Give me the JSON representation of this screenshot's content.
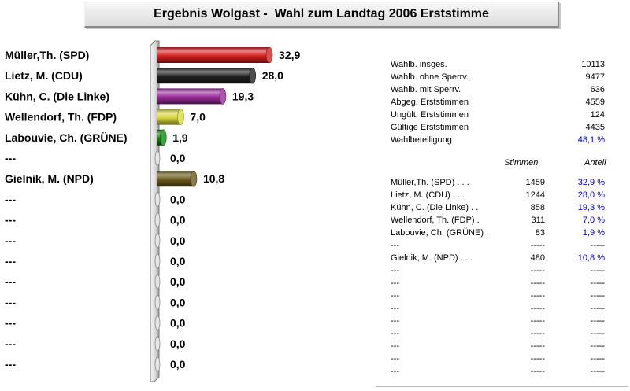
{
  "title": "Ergebnis Wolgast -  Wahl zum Landtag 2006 Erststimme",
  "chart_data": {
    "type": "bar",
    "orientation": "horizontal",
    "title": "Ergebnis Wolgast -  Wahl zum Landtag 2006 Erststimme",
    "categories": [
      "Müller,Th. (SPD)",
      "Lietz, M. (CDU)",
      "Kühn, C. (Die Linke)",
      "Wellendorf, Th. (FDP)",
      "Labouvie, Ch. (GRÜNE)",
      "---",
      "Gielnik, M. (NPD)",
      "---",
      "---",
      "---",
      "---",
      "---",
      "---",
      "---",
      "---",
      "---"
    ],
    "values": [
      32.9,
      28.0,
      19.3,
      7.0,
      1.9,
      0.0,
      10.8,
      0.0,
      0.0,
      0.0,
      0.0,
      0.0,
      0.0,
      0.0,
      0.0,
      0.0
    ],
    "value_labels": [
      "32,9",
      "28,0",
      "19,3",
      "7,0",
      "1,9",
      "0,0",
      "10,8",
      "0,0",
      "0,0",
      "0,0",
      "0,0",
      "0,0",
      "0,0",
      "0,0",
      "0,0",
      "0,0"
    ],
    "colors": [
      "#d92020",
      "#202020",
      "#9a2a9a",
      "#d8d840",
      "#118811",
      "#cccccc",
      "#6b5a1c",
      "#cccccc",
      "#cccccc",
      "#cccccc",
      "#cccccc",
      "#cccccc",
      "#cccccc",
      "#cccccc",
      "#cccccc",
      "#cccccc"
    ],
    "xlim": [
      0,
      32.9
    ]
  },
  "stats": [
    {
      "label": "Wahlb. insges.",
      "value": "10113"
    },
    {
      "label": "Wahlb. ohne Sperrv.",
      "value": "9477"
    },
    {
      "label": "Wahlb. mit Sperrv.",
      "value": "636"
    },
    {
      "label": "Abgeg. Erststimmen",
      "value": "4559"
    },
    {
      "label": "Ungült. Erststimmen",
      "value": "124"
    },
    {
      "label": "Gültige Erststimmen",
      "value": "4435"
    },
    {
      "label": "Wahlbeteiligung",
      "value": "48,1 %"
    }
  ],
  "results_header": {
    "stimmen": "Stimmen",
    "anteil": "Anteil"
  },
  "results": [
    {
      "name": "Müller,Th. (SPD)  .  .  .",
      "stimmen": "1459",
      "anteil": "32,9 %"
    },
    {
      "name": "Lietz, M. (CDU)  .  .  .",
      "stimmen": "1244",
      "anteil": "28,0 %"
    },
    {
      "name": "Kühn, C. (Die Linke)  .  .",
      "stimmen": "858",
      "anteil": "19,3 %"
    },
    {
      "name": "Wellendorf, Th. (FDP)  .",
      "stimmen": "311",
      "anteil": "7,0 %"
    },
    {
      "name": "Labouvie, Ch. (GRÜNE)  .",
      "stimmen": "83",
      "anteil": "1,9 %"
    },
    {
      "name": "---",
      "stimmen": "-----",
      "anteil": "-----"
    },
    {
      "name": "Gielnik, M. (NPD)  .  .  .",
      "stimmen": "480",
      "anteil": "10,8 %"
    },
    {
      "name": "---",
      "stimmen": "-----",
      "anteil": "-----"
    },
    {
      "name": "---",
      "stimmen": "-----",
      "anteil": "-----"
    },
    {
      "name": "---",
      "stimmen": "-----",
      "anteil": "-----"
    },
    {
      "name": "---",
      "stimmen": "-----",
      "anteil": "-----"
    },
    {
      "name": "---",
      "stimmen": "-----",
      "anteil": "-----"
    },
    {
      "name": "---",
      "stimmen": "-----",
      "anteil": "-----"
    },
    {
      "name": "---",
      "stimmen": "-----",
      "anteil": "-----"
    },
    {
      "name": "---",
      "stimmen": "-----",
      "anteil": "-----"
    },
    {
      "name": "---",
      "stimmen": "-----",
      "anteil": "-----"
    }
  ]
}
